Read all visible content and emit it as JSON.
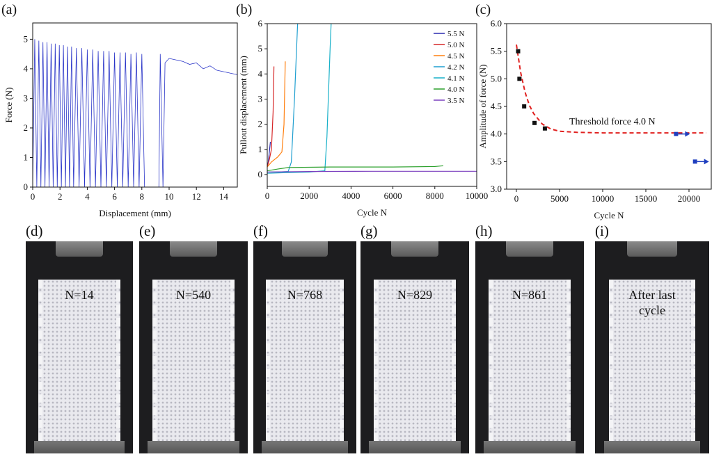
{
  "chart_data": [
    {
      "type": "line",
      "panel": "(a)",
      "xlabel": "Displacement (mm)",
      "ylabel": "Force (N)",
      "xlim": [
        0,
        15
      ],
      "ylim": [
        0,
        5.55
      ],
      "xticks": [
        0,
        2,
        4,
        6,
        8,
        10,
        12,
        14
      ],
      "yticks": [
        0,
        1,
        2,
        3,
        4,
        5
      ],
      "color": "#2a35c8",
      "x": [
        0,
        0.15,
        0.3,
        0.45,
        0.6,
        0.75,
        0.9,
        1.05,
        1.2,
        1.35,
        1.5,
        1.65,
        1.8,
        1.95,
        2.1,
        2.25,
        2.4,
        2.55,
        2.7,
        2.85,
        3.0,
        3.2,
        3.4,
        3.6,
        3.8,
        4.0,
        4.2,
        4.4,
        4.6,
        4.8,
        5.0,
        5.2,
        5.4,
        5.6,
        5.8,
        6.0,
        6.2,
        6.4,
        6.6,
        6.8,
        7.0,
        7.2,
        7.4,
        7.6,
        7.8,
        8.0,
        8.2,
        8.7,
        9.25,
        9.35,
        9.55,
        9.7,
        10.0,
        10.5,
        11.0,
        11.5,
        12.0,
        12.5,
        13.0,
        13.5,
        14.0,
        14.5,
        15.0
      ],
      "values": [
        0,
        5.0,
        0,
        4.95,
        0,
        4.9,
        0,
        4.9,
        0,
        4.85,
        0,
        4.85,
        0,
        4.8,
        0,
        4.8,
        0,
        4.75,
        0,
        4.75,
        0,
        4.7,
        0,
        4.7,
        0,
        4.65,
        0,
        4.65,
        0,
        4.6,
        0,
        4.6,
        0,
        4.6,
        0,
        4.55,
        0,
        4.55,
        0,
        4.55,
        0,
        4.5,
        0,
        4.55,
        0,
        4.5,
        0,
        null,
        0,
        4.5,
        0,
        4.2,
        4.35,
        4.3,
        4.25,
        4.15,
        4.2,
        4.0,
        4.1,
        3.95,
        3.9,
        3.85,
        3.8
      ]
    },
    {
      "type": "line",
      "panel": "(b)",
      "xlabel": "Cycle N",
      "ylabel": "Pullout displacement (mm)",
      "xlim": [
        0,
        10000
      ],
      "ylim": [
        -0.47,
        6
      ],
      "xticks": [
        0,
        2000,
        4000,
        6000,
        8000,
        10000
      ],
      "yticks": [
        0,
        1,
        2,
        3,
        4,
        5,
        6
      ],
      "legend": "upper right",
      "series": [
        {
          "name": "5.5 N",
          "color": "#2a2ab0",
          "x": [
            0,
            50,
            100,
            150
          ],
          "values": [
            0.3,
            0.5,
            0.9,
            1.3
          ]
        },
        {
          "name": "5.0 N",
          "color": "#d62728",
          "x": [
            0,
            100,
            200,
            280,
            320
          ],
          "values": [
            0.3,
            0.6,
            1.0,
            2.5,
            4.3
          ]
        },
        {
          "name": "4.5 N",
          "color": "#ff7f0e",
          "x": [
            0,
            200,
            500,
            700,
            800,
            860
          ],
          "values": [
            0.3,
            0.5,
            0.7,
            0.9,
            2.0,
            4.5
          ]
        },
        {
          "name": "4.2 N",
          "color": "#1f9fd0",
          "x": [
            0,
            500,
            1000,
            1150,
            1300,
            1450
          ],
          "values": [
            0.1,
            0.1,
            0.12,
            0.5,
            3,
            6
          ]
        },
        {
          "name": "4.1 N",
          "color": "#17b0c8",
          "x": [
            0,
            1000,
            2000,
            2750,
            2850,
            3000,
            3050
          ],
          "values": [
            0.05,
            0.08,
            0.1,
            0.15,
            1.5,
            5,
            6
          ]
        },
        {
          "name": "4.0 N",
          "color": "#2ca02c",
          "x": [
            0,
            500,
            1000,
            3000,
            6000,
            8000,
            8400
          ],
          "values": [
            0.15,
            0.22,
            0.28,
            0.3,
            0.3,
            0.32,
            0.35
          ]
        },
        {
          "name": "3.5 N",
          "color": "#7b3fbf",
          "x": [
            0,
            2000,
            5000,
            10000
          ],
          "values": [
            0.1,
            0.12,
            0.13,
            0.13
          ]
        }
      ]
    },
    {
      "type": "scatter",
      "panel": "(c)",
      "xlabel": "Cycle N",
      "ylabel": "Amplitude of force (N)",
      "xlim": [
        -1130,
        22580
      ],
      "ylim": [
        3.0,
        6.0
      ],
      "xticks": [
        0,
        5000,
        10000,
        15000,
        20000
      ],
      "yticks": [
        {
          "value": 3,
          "label": "3.0"
        },
        3.5,
        {
          "value": 4,
          "label": "4.0"
        },
        4.5,
        {
          "value": 5,
          "label": "5.0"
        },
        5.5,
        {
          "value": 6,
          "label": "6.0"
        }
      ],
      "annotation": "Threshold force 4.0 N",
      "x": [
        200,
        350,
        900,
        2100,
        3300,
        18500,
        20700
      ],
      "values": [
        5.5,
        5.0,
        4.5,
        4.2,
        4.1,
        4.0,
        3.5
      ],
      "colors": [
        "#111111",
        "#111111",
        "#111111",
        "#111111",
        "#111111",
        "#1f3fbf",
        "#1f3fbf"
      ],
      "runout": [
        false,
        false,
        false,
        false,
        false,
        true,
        true
      ],
      "fit": {
        "color": "#e0201f",
        "x": [
          0,
          500,
          1000,
          1500,
          2000,
          3000,
          4000,
          5000,
          7000,
          10000,
          15000,
          22000
        ],
        "values": [
          5.62,
          5.11,
          4.76,
          4.52,
          4.37,
          4.18,
          4.09,
          4.05,
          4.03,
          4.02,
          4.02,
          4.02
        ]
      }
    }
  ],
  "photos": [
    {
      "label": "(d)",
      "caption": "N=14"
    },
    {
      "label": "(e)",
      "caption": "N=540"
    },
    {
      "label": "(f)",
      "caption": "N=768"
    },
    {
      "label": "(g)",
      "caption": "N=829"
    },
    {
      "label": "(h)",
      "caption": "N=861"
    },
    {
      "label": "(i)",
      "caption": "After last cycle"
    }
  ]
}
